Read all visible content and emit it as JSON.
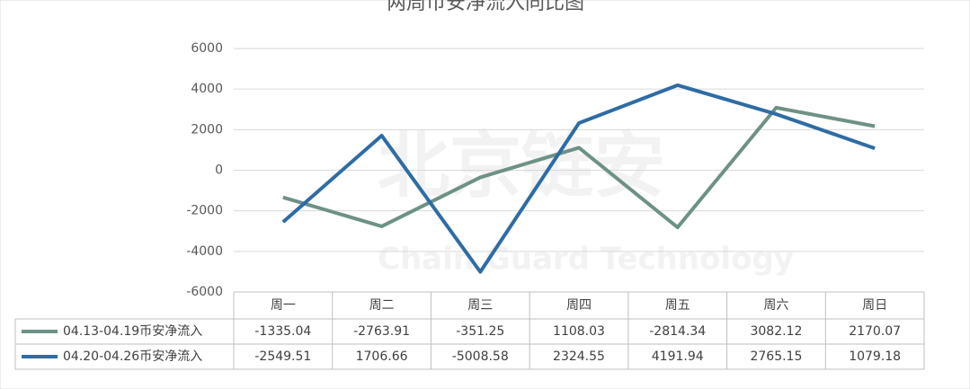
{
  "chart_data": {
    "type": "line",
    "title": "两周币安净流入同比图",
    "watermark": "北京链安",
    "watermark_sub": "Chain Guard Technology",
    "categories": [
      "周一",
      "周二",
      "周三",
      "周四",
      "周五",
      "周六",
      "周日"
    ],
    "series": [
      {
        "name": "04.13-04.19币安净流入",
        "color": "#6e9187",
        "values": [
          -1335.04,
          -2763.91,
          -351.25,
          1108.03,
          -2814.34,
          3082.12,
          2170.07
        ]
      },
      {
        "name": "04.20-04.26币安净流入",
        "color": "#2e6ca4",
        "values": [
          -2549.51,
          1706.66,
          -5008.58,
          2324.55,
          4191.94,
          2765.15,
          1079.18
        ]
      }
    ],
    "ylim": [
      -6000,
      6000
    ],
    "yticks": [
      -6000,
      -4000,
      -2000,
      0,
      2000,
      4000,
      6000
    ],
    "grid": true
  }
}
